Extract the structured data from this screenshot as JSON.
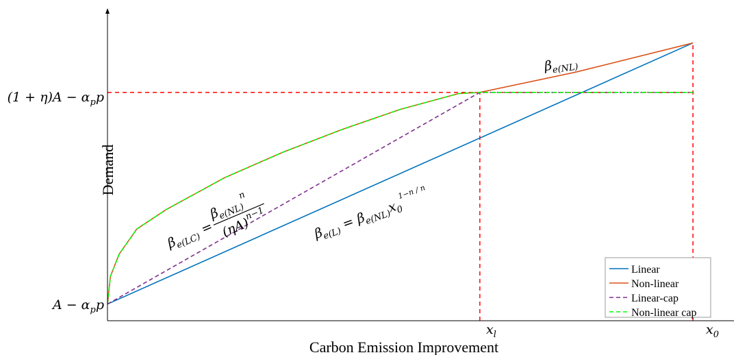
{
  "chart_data": {
    "type": "line",
    "xlabel": "Carbon Emission Improvement",
    "ylabel": "Demand",
    "x_ticks": [
      {
        "x": 0.636,
        "label": "x",
        "sub": "l"
      },
      {
        "x": 1.0,
        "label": "x",
        "sub": "0"
      }
    ],
    "y_ticks": [
      {
        "y": 0.0,
        "label": "A − α",
        "sub": "p",
        "after": "p"
      },
      {
        "y": 0.762,
        "label": "(1 + η)A − α",
        "sub": "p",
        "after": "p"
      }
    ],
    "xlim": [
      0,
      1.07
    ],
    "ylim": [
      -0.06,
      1.07
    ],
    "legend_position": "bottom-right",
    "series": [
      {
        "name": "Linear",
        "style": "solid",
        "color": "#0072BD",
        "x": [
          0,
          1.0
        ],
        "y": [
          0,
          0.94
        ]
      },
      {
        "name": "Non-linear",
        "style": "solid",
        "color": "#D95319",
        "x": [
          0,
          0.005,
          0.02,
          0.05,
          0.1,
          0.2,
          0.3,
          0.4,
          0.5,
          0.6,
          0.636,
          0.8,
          1.0
        ],
        "y": [
          0,
          0.1,
          0.18,
          0.27,
          0.34,
          0.455,
          0.547,
          0.628,
          0.701,
          0.758,
          0.762,
          0.835,
          0.94
        ]
      },
      {
        "name": "Linear-cap",
        "style": "dashed",
        "color": "#7E2F8E",
        "x": [
          0,
          0.636,
          1.0
        ],
        "y": [
          0,
          0.762,
          0.762
        ]
      },
      {
        "name": "Non-linear cap",
        "style": "dashed",
        "color": "#00FF00",
        "x": [
          0,
          0.005,
          0.02,
          0.05,
          0.1,
          0.2,
          0.3,
          0.4,
          0.5,
          0.6,
          0.636,
          1.0
        ],
        "y": [
          0,
          0.1,
          0.18,
          0.27,
          0.34,
          0.455,
          0.547,
          0.628,
          0.701,
          0.758,
          0.762,
          0.762
        ]
      }
    ],
    "reference_color": "#FF0000",
    "annotations": {
      "beta_nl": {
        "text": "β",
        "sub": "e(NL)"
      },
      "beta_l": {
        "pre": "β",
        "presub": "e(L)",
        "mid": " = β",
        "midsub": "e(NL)",
        "tail": "x",
        "tailsub": "0",
        "sup": "1−n / n"
      },
      "beta_lc": {
        "pre": "β",
        "presub": "e(LC)",
        "mid": " = ",
        "num": "β",
        "numsub": "e(NL)",
        "numsup": "n",
        "den": "(ηA)",
        "densup": "n−1"
      }
    }
  }
}
